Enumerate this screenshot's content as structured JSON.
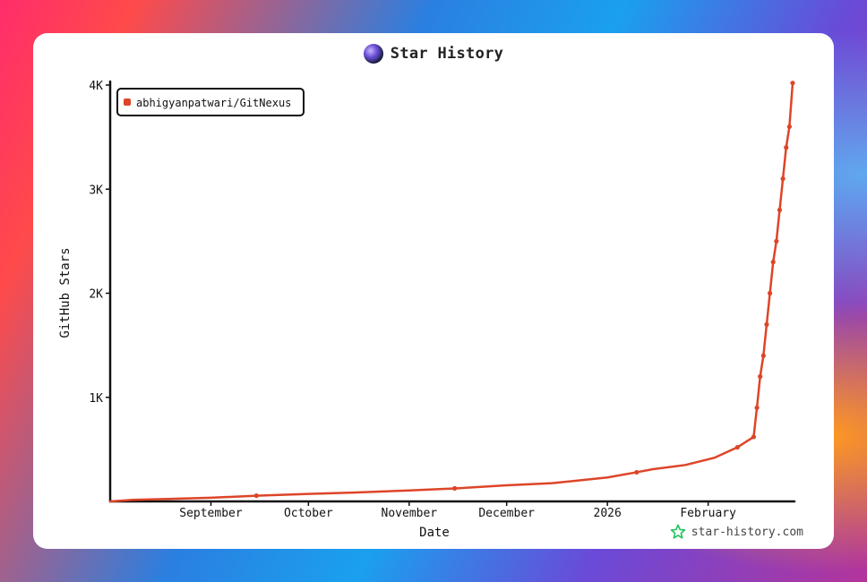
{
  "title": "Star History",
  "watermark": "star-history.com",
  "colors": {
    "series": "#dd4528",
    "axis": "#111111",
    "brand_icon": "#22c55e"
  },
  "chart_data": {
    "type": "line",
    "title": "Star History",
    "xlabel": "Date",
    "ylabel": "GitHub Stars",
    "legend_position": "top-left",
    "grid": false,
    "xlim": [
      "2025-08-01",
      "2026-02-27"
    ],
    "ylim": [
      0,
      4000
    ],
    "x_ticks": [
      {
        "date": "2025-09-01",
        "label": "September"
      },
      {
        "date": "2025-10-01",
        "label": "October"
      },
      {
        "date": "2025-11-01",
        "label": "November"
      },
      {
        "date": "2025-12-01",
        "label": "December"
      },
      {
        "date": "2026-01-01",
        "label": "2026"
      },
      {
        "date": "2026-02-01",
        "label": "February"
      }
    ],
    "y_ticks": [
      {
        "value": 1000,
        "label": "1K"
      },
      {
        "value": 2000,
        "label": "2K"
      },
      {
        "value": 3000,
        "label": "3K"
      },
      {
        "value": 4000,
        "label": "4K"
      }
    ],
    "series": [
      {
        "name": "abhigyanpatwari/GitNexus",
        "points": [
          [
            "2025-08-01",
            0
          ],
          [
            "2025-08-08",
            15
          ],
          [
            "2025-08-20",
            25
          ],
          [
            "2025-09-01",
            35
          ],
          [
            "2025-09-15",
            55
          ],
          [
            "2025-10-01",
            72
          ],
          [
            "2025-10-15",
            85
          ],
          [
            "2025-11-01",
            105
          ],
          [
            "2025-11-15",
            125
          ],
          [
            "2025-12-01",
            155
          ],
          [
            "2025-12-15",
            175
          ],
          [
            "2026-01-01",
            230
          ],
          [
            "2026-01-10",
            280
          ],
          [
            "2026-01-15",
            310
          ],
          [
            "2026-01-25",
            350
          ],
          [
            "2026-02-03",
            420
          ],
          [
            "2026-02-10",
            520
          ],
          [
            "2026-02-15",
            620
          ],
          [
            "2026-02-16",
            900
          ],
          [
            "2026-02-17",
            1200
          ],
          [
            "2026-02-18",
            1400
          ],
          [
            "2026-02-19",
            1700
          ],
          [
            "2026-02-20",
            2000
          ],
          [
            "2026-02-21",
            2300
          ],
          [
            "2026-02-22",
            2500
          ],
          [
            "2026-02-23",
            2800
          ],
          [
            "2026-02-24",
            3100
          ],
          [
            "2026-02-25",
            3400
          ],
          [
            "2026-02-26",
            3600
          ],
          [
            "2026-02-27",
            4020
          ]
        ]
      }
    ]
  }
}
